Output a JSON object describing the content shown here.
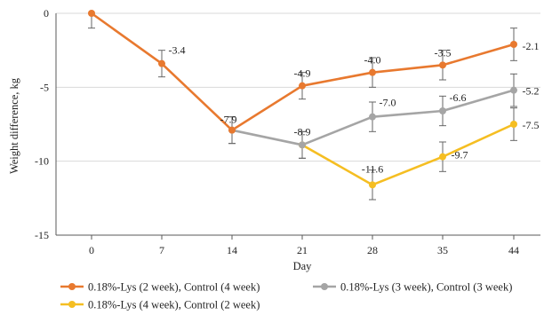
{
  "chart_data": {
    "type": "line",
    "title": "",
    "xlabel": "Day",
    "ylabel": "Weight difference, kg",
    "x": [
      0,
      7,
      14,
      21,
      28,
      35,
      44
    ],
    "x_tick_labels": [
      "0",
      "7",
      "14",
      "21",
      "28",
      "35",
      "44"
    ],
    "ylim": [
      -15,
      0
    ],
    "y_ticks": [
      0,
      -5,
      -10,
      -15
    ],
    "y_tick_labels": [
      "0",
      "-5",
      "-10",
      "-15"
    ],
    "grid": "horizontal",
    "legend_position": "bottom",
    "error_bars": [
      1.0,
      0.9,
      0.9,
      0.9,
      1.0,
      1.0,
      1.1
    ],
    "series": [
      {
        "name": "0.18%-Lys (2 week), Control (4 week)",
        "color": "#E8792F",
        "values": [
          0,
          -3.4,
          -7.9,
          -4.9,
          -4.0,
          -3.5,
          -2.1
        ],
        "labels": [
          "",
          "-3.4",
          "-7.9",
          "-4.9",
          "-4.0",
          "-3.5",
          "-2.1"
        ]
      },
      {
        "name": "0.18%-Lys (3 week), Control (3 week)",
        "color": "#A5A5A5",
        "values": [
          null,
          null,
          -7.9,
          -8.9,
          -7.0,
          -6.6,
          -5.2
        ],
        "labels": [
          "",
          "",
          "",
          "-8.9",
          "-7.0",
          "-6.6",
          "-5.2"
        ]
      },
      {
        "name": "0.18%-Lys (4 week), Control (2 week)",
        "color": "#F5BE22",
        "values": [
          null,
          null,
          null,
          -8.9,
          -11.6,
          -9.7,
          -7.5
        ],
        "labels": [
          "",
          "",
          "",
          "",
          "-11.6",
          "-9.7",
          "-7.5"
        ]
      }
    ]
  }
}
